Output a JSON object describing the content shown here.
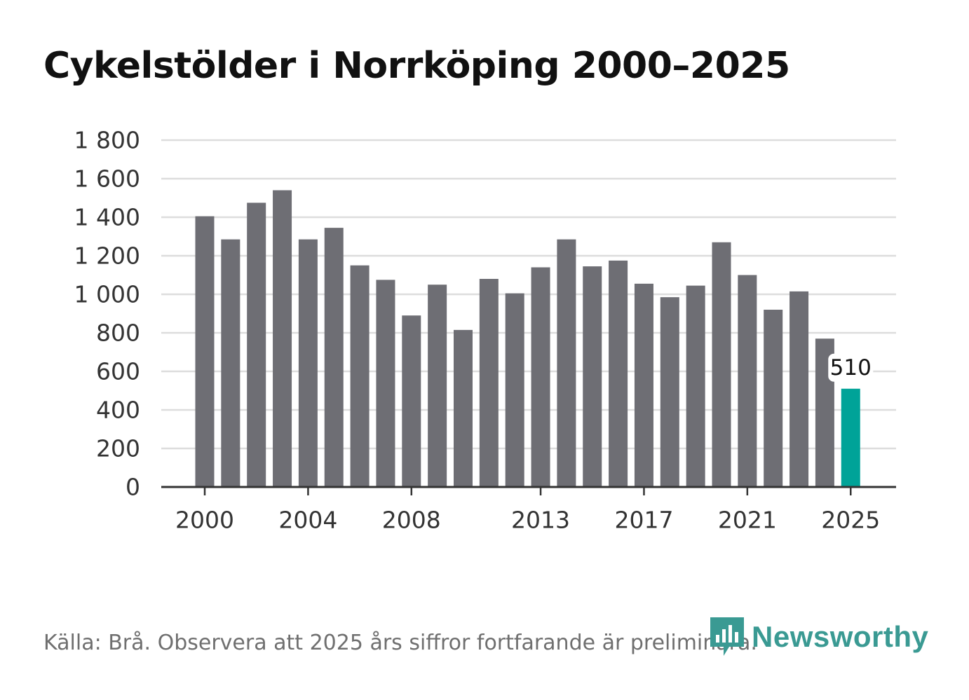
{
  "chart_data": {
    "type": "bar",
    "title": "Cykelstölder i Norrköping 2000–2025",
    "xlabel": "",
    "ylabel": "",
    "categories": [
      "2000",
      "2001",
      "2002",
      "2003",
      "2004",
      "2005",
      "2006",
      "2007",
      "2008",
      "2009",
      "2010",
      "2011",
      "2012",
      "2013",
      "2014",
      "2015",
      "2016",
      "2017",
      "2018",
      "2019",
      "2020",
      "2021",
      "2022",
      "2023",
      "2024",
      "2025"
    ],
    "values": [
      1405,
      1285,
      1475,
      1540,
      1285,
      1345,
      1150,
      1075,
      890,
      1050,
      815,
      1080,
      1005,
      1140,
      1285,
      1145,
      1175,
      1055,
      985,
      1045,
      1270,
      1100,
      920,
      1015,
      770,
      510
    ],
    "x_tick_labels": [
      "2000",
      "2004",
      "2008",
      "2013",
      "2017",
      "2021",
      "2025"
    ],
    "y_tick_values": [
      0,
      200,
      400,
      600,
      800,
      1000,
      1200,
      1400,
      1600,
      1800
    ],
    "y_tick_labels": [
      "0",
      "200",
      "400",
      "600",
      "800",
      "1 000",
      "1 200",
      "1 400",
      "1 600",
      "1 800"
    ],
    "ylim": [
      0,
      1800
    ],
    "grid": true,
    "highlight": {
      "category": "2025",
      "label": "510"
    },
    "colors": {
      "bar": "#6e6e74",
      "highlight": "#00a398",
      "grid": "#dddddd",
      "axis": "#333333",
      "tick_text": "#333333"
    }
  },
  "source": "Källa: Brå. Observera att 2025 års siffror fortfarande är preliminära.",
  "brand": {
    "name": "Newsworthy",
    "color": "#3a9a93",
    "icon": "newsworthy-logo-icon"
  }
}
